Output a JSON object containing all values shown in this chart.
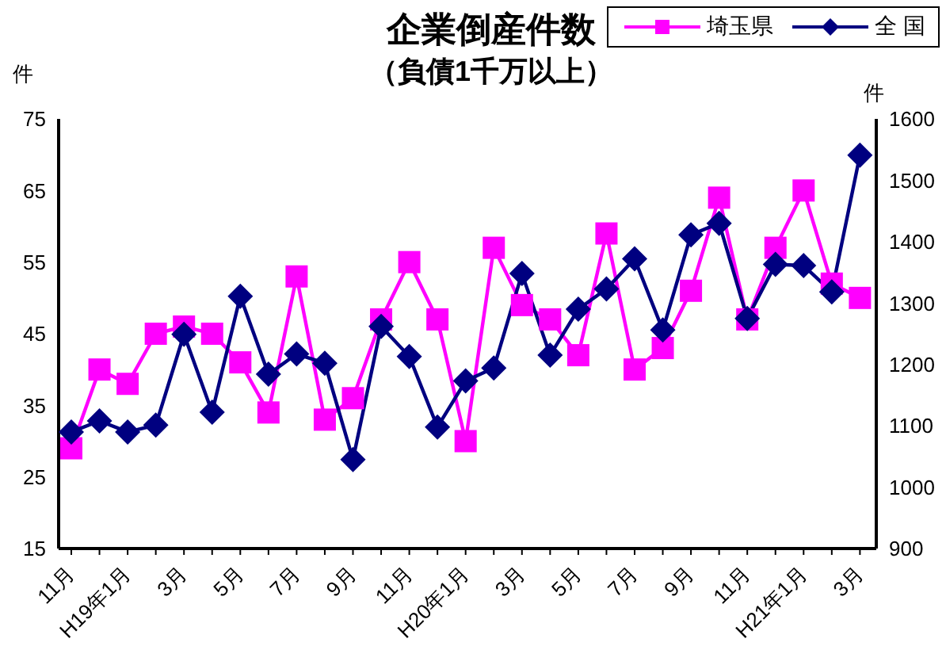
{
  "chart_data": {
    "type": "line",
    "title": "企業倒産件数",
    "subtitle": "（負債1千万以上）",
    "ylabel": "件",
    "y2label": "件",
    "categories": [
      "11月",
      null,
      "H19年1月",
      null,
      "3月",
      null,
      "5月",
      null,
      "7月",
      null,
      "9月",
      null,
      "11月",
      null,
      "H20年1月",
      null,
      "3月",
      null,
      "5月",
      null,
      "7月",
      null,
      "9月",
      null,
      "11月",
      null,
      "H21年1月",
      null,
      "3月"
    ],
    "series": [
      {
        "name": "埼玉県",
        "color": "#ff00ff",
        "marker": "square",
        "values": [
          29,
          40,
          38,
          45,
          46,
          45,
          41,
          34,
          53,
          33,
          36,
          47,
          55,
          47,
          30,
          57,
          49,
          47,
          42,
          59,
          40,
          43,
          51,
          64,
          47,
          57,
          65,
          52,
          50
        ]
      },
      {
        "name": "全 国",
        "color": "#000080",
        "marker": "diamond",
        "axis": "y2",
        "values": [
          1090,
          1108,
          1090,
          1101,
          1249,
          1122,
          1311,
          1184,
          1217,
          1202,
          1045,
          1262,
          1213,
          1098,
          1173,
          1194,
          1348,
          1215,
          1290,
          1323,
          1372,
          1256,
          1411,
          1430,
          1275,
          1363,
          1361,
          1318,
          1541
        ]
      }
    ],
    "ylim": [
      15,
      75
    ],
    "yticks": [
      15,
      25,
      35,
      45,
      55,
      65,
      75
    ],
    "y2lim": [
      900,
      1600
    ],
    "y2ticks": [
      900,
      1000,
      1100,
      1200,
      1300,
      1400,
      1500,
      1600
    ],
    "grid": false,
    "legend": "top right",
    "line_style": "solid"
  }
}
